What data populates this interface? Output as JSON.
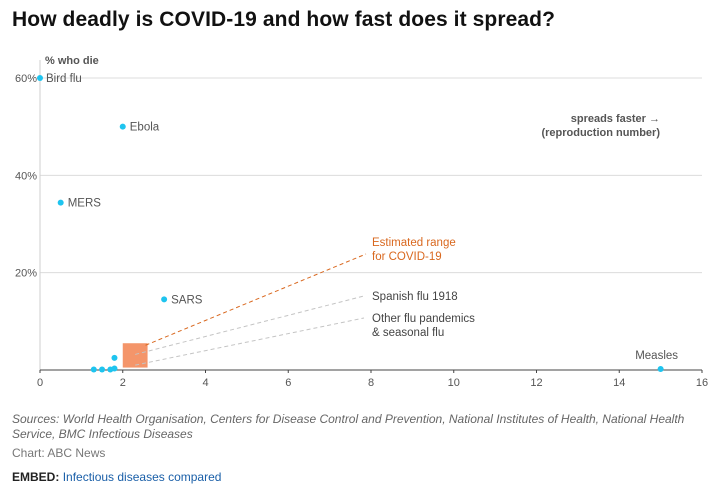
{
  "title": "How deadly is COVID-19 and how fast does it spread?",
  "chart_data": {
    "type": "scatter",
    "ylabel": "% who die",
    "xlabel": "spreads faster → (reproduction number)",
    "xlabel_lines": [
      "spreads faster →",
      "(reproduction number)"
    ],
    "xlim": [
      0,
      16
    ],
    "ylim": [
      0,
      60
    ],
    "x_ticks": [
      0,
      2,
      4,
      6,
      8,
      10,
      12,
      14,
      16
    ],
    "y_ticks": [
      20,
      40,
      60
    ],
    "y_tick_labels": [
      "20%",
      "40%",
      "60%"
    ],
    "grid": true,
    "point_color": "#1ec4ef",
    "points": [
      {
        "label": "Bird flu",
        "x": 0,
        "y": 60
      },
      {
        "label": "Ebola",
        "x": 2,
        "y": 50
      },
      {
        "label": "MERS",
        "x": 0.5,
        "y": 34.4
      },
      {
        "label": "SARS",
        "x": 3,
        "y": 14.5
      },
      {
        "label": "Measles",
        "x": 15,
        "y": 0.2
      },
      {
        "label": "",
        "x": 1.8,
        "y": 2.5
      },
      {
        "label": "",
        "x": 1.3,
        "y": 0.1
      },
      {
        "label": "",
        "x": 1.5,
        "y": 0.1
      },
      {
        "label": "",
        "x": 1.7,
        "y": 0.1
      },
      {
        "label": "",
        "x": 1.8,
        "y": 0.3
      }
    ],
    "covid_range": {
      "x": [
        2,
        2.6
      ],
      "y": [
        0.5,
        5.5
      ],
      "color": "#f4956a",
      "label_lines": [
        "Estimated range",
        "for COVID-19"
      ],
      "label_color": "#d9681f"
    },
    "annotations": [
      {
        "label_lines": [
          "Spanish flu 1918"
        ],
        "x": 2.3,
        "y": 3.2
      },
      {
        "label_lines": [
          "Other flu pandemics",
          "& seasonal flu"
        ],
        "x": 2.3,
        "y": 1.0
      }
    ]
  },
  "sources": "Sources: World Health Organisation, Centers for Disease Control and Prevention, National Institutes of Health, National Health Service, BMC Infectious Diseases",
  "credit": "Chart: ABC News",
  "embed": {
    "label": "EMBED:",
    "link_text": "Infectious diseases compared"
  }
}
